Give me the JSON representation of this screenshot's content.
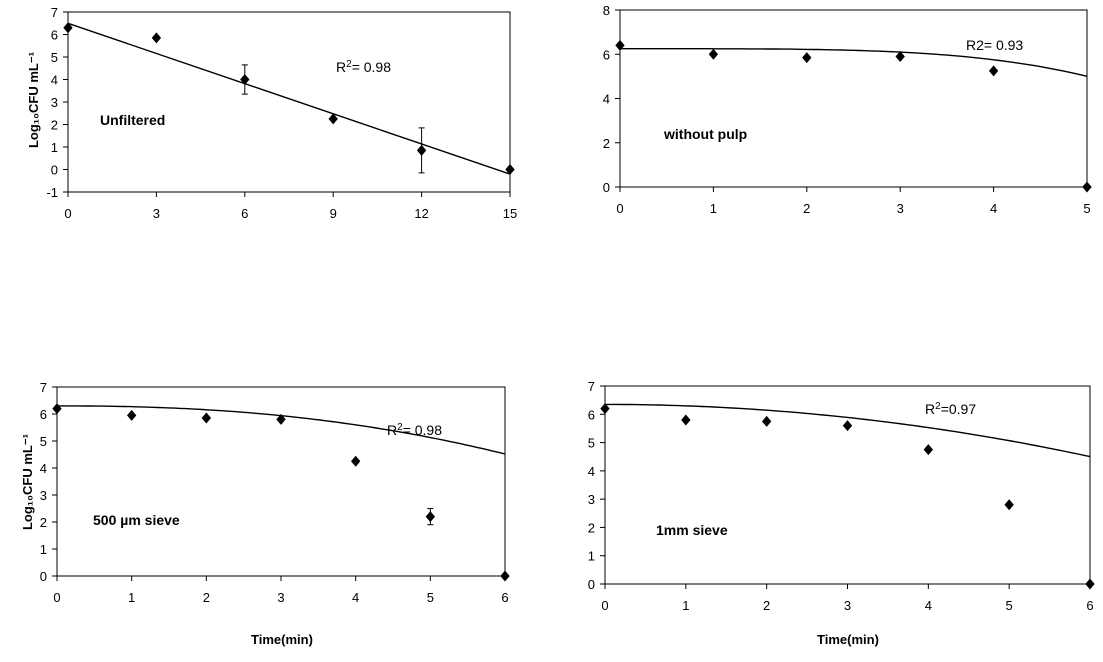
{
  "chart_data": [
    {
      "type": "scatter",
      "panel_label": "Unfiltered",
      "r2_label": "R²= 0.98",
      "ylabel": "Log₁₀CFU mL⁻¹",
      "xlabel": "",
      "xlim": [
        0,
        15
      ],
      "ylim": [
        -1,
        7
      ],
      "x_ticks": [
        "0",
        "3",
        "6",
        "9",
        "12",
        "15"
      ],
      "y_ticks": [
        "-1",
        "0",
        "1",
        "2",
        "3",
        "4",
        "5",
        "6",
        "7"
      ],
      "points": [
        {
          "x": 0,
          "y": 6.3
        },
        {
          "x": 3,
          "y": 5.85
        },
        {
          "x": 6,
          "y": 4.0,
          "err": 0.65
        },
        {
          "x": 9,
          "y": 2.25
        },
        {
          "x": 12,
          "y": 0.85,
          "err": 1.0
        },
        {
          "x": 15,
          "y": 0.0
        }
      ],
      "fit": {
        "type": "linear",
        "intercept": 6.5,
        "slope": -0.447
      }
    },
    {
      "type": "scatter",
      "panel_label": "without pulp",
      "r2_label": "R2= 0.93",
      "ylabel": "",
      "xlabel": "",
      "xlim": [
        0,
        5
      ],
      "ylim": [
        0,
        8
      ],
      "x_ticks": [
        "0",
        "1",
        "2",
        "3",
        "4",
        "5"
      ],
      "y_ticks": [
        "0",
        "2",
        "4",
        "6",
        "8"
      ],
      "points": [
        {
          "x": 0,
          "y": 6.4
        },
        {
          "x": 1,
          "y": 6.0
        },
        {
          "x": 2,
          "y": 5.85
        },
        {
          "x": 3,
          "y": 5.9
        },
        {
          "x": 4,
          "y": 5.25
        },
        {
          "x": 5,
          "y": 0.0
        }
      ],
      "fit": {
        "type": "power",
        "a": 6.25,
        "b": 0.0017,
        "c": 4.1,
        "x_end": 5.0
      }
    },
    {
      "type": "scatter",
      "panel_label": "500 µm sieve",
      "r2_label": "R²= 0.98",
      "ylabel": "Log₁₀CFU mL⁻¹",
      "xlabel": "Time(min)",
      "xlim": [
        0,
        6
      ],
      "ylim": [
        0,
        7
      ],
      "x_ticks": [
        "0",
        "1",
        "2",
        "3",
        "4",
        "5",
        "6"
      ],
      "y_ticks": [
        "0",
        "1",
        "2",
        "3",
        "4",
        "5",
        "6",
        "7"
      ],
      "points": [
        {
          "x": 0,
          "y": 6.2
        },
        {
          "x": 1,
          "y": 5.95
        },
        {
          "x": 2,
          "y": 5.85
        },
        {
          "x": 3,
          "y": 5.8
        },
        {
          "x": 4,
          "y": 4.25
        },
        {
          "x": 5,
          "y": 2.2,
          "err": 0.3
        },
        {
          "x": 6,
          "y": 0.0
        }
      ],
      "fit": {
        "type": "power",
        "a": 6.3,
        "b": 0.0289,
        "c": 2.3,
        "x_end": 6.0
      }
    },
    {
      "type": "scatter",
      "panel_label": "1mm sieve",
      "r2_label": "R²=0.97",
      "ylabel": "",
      "xlabel": "Time(min)",
      "xlim": [
        0,
        6
      ],
      "ylim": [
        0,
        7
      ],
      "x_ticks": [
        "0",
        "1",
        "2",
        "3",
        "4",
        "5",
        "6"
      ],
      "y_ticks": [
        "0",
        "1",
        "2",
        "3",
        "4",
        "5",
        "6",
        "7"
      ],
      "points": [
        {
          "x": 0,
          "y": 6.2
        },
        {
          "x": 1,
          "y": 5.8
        },
        {
          "x": 2,
          "y": 5.75
        },
        {
          "x": 3,
          "y": 5.6
        },
        {
          "x": 4,
          "y": 4.75
        },
        {
          "x": 5,
          "y": 2.8
        },
        {
          "x": 6,
          "y": 0.0
        }
      ],
      "fit": {
        "type": "power",
        "a": 6.35,
        "b": 0.0513,
        "c": 2.0,
        "x_end": 6.0
      }
    }
  ]
}
